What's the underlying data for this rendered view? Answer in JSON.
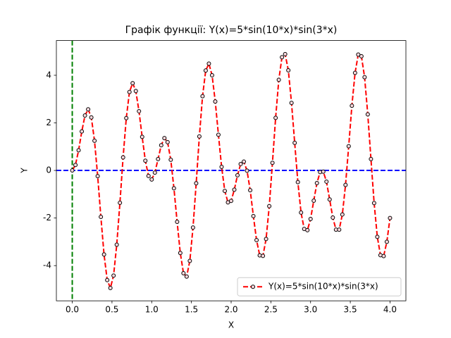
{
  "chart_data": {
    "type": "line",
    "title": "Графік функції: Y(x)=5*sin(10*x)*sin(3*x)",
    "x_label": "X",
    "y_label": "Y",
    "x": [
      0,
      0.04,
      0.08,
      0.12,
      0.16,
      0.2,
      0.24,
      0.28,
      0.32,
      0.36,
      0.4,
      0.44,
      0.48,
      0.52,
      0.56,
      0.6,
      0.64,
      0.68,
      0.72,
      0.76,
      0.8,
      0.84,
      0.88,
      0.92,
      0.96,
      1.0,
      1.04,
      1.08,
      1.12,
      1.16,
      1.2,
      1.24,
      1.28,
      1.32,
      1.36,
      1.4,
      1.44,
      1.48,
      1.52,
      1.56,
      1.6,
      1.64,
      1.68,
      1.72,
      1.76,
      1.8,
      1.84,
      1.88,
      1.92,
      1.96,
      2.0,
      2.04,
      2.08,
      2.12,
      2.16,
      2.2,
      2.24,
      2.28,
      2.32,
      2.36,
      2.4,
      2.44,
      2.48,
      2.52,
      2.56,
      2.6,
      2.64,
      2.68,
      2.72,
      2.76,
      2.8,
      2.84,
      2.88,
      2.92,
      2.96,
      3.0,
      3.04,
      3.08,
      3.12,
      3.16,
      3.2,
      3.24,
      3.28,
      3.32,
      3.36,
      3.4,
      3.44,
      3.48,
      3.52,
      3.56,
      3.6,
      3.64,
      3.68,
      3.72,
      3.76,
      3.8,
      3.84,
      3.88,
      3.92,
      3.96,
      4.0
    ],
    "series": [
      {
        "name": "Y(x)=5*sin(10*x)*sin(3*x)",
        "color": "#ff0000",
        "marker_face": "#fbd9de",
        "marker_edge": "#000000",
        "values": [
          0,
          0.23,
          0.85,
          1.64,
          2.31,
          2.57,
          2.23,
          1.25,
          -0.24,
          -1.95,
          -3.53,
          -4.61,
          -4.94,
          -4.42,
          -3.12,
          -1.36,
          0.55,
          2.2,
          3.3,
          3.67,
          3.34,
          2.49,
          1.41,
          0.41,
          -0.23,
          -0.38,
          -0.09,
          0.48,
          1.06,
          1.36,
          1.19,
          0.45,
          -0.75,
          -2.16,
          -3.47,
          -4.32,
          -4.46,
          -3.8,
          -2.4,
          -0.54,
          1.43,
          3.12,
          4.2,
          4.49,
          4.0,
          2.9,
          1.5,
          0.15,
          -0.86,
          -1.34,
          -1.28,
          -0.81,
          -0.2,
          0.27,
          0.37,
          -0.01,
          -0.83,
          -1.92,
          -2.93,
          -3.57,
          -3.59,
          -2.88,
          -1.5,
          0.32,
          2.21,
          3.81,
          4.76,
          4.89,
          4.21,
          2.84,
          1.16,
          -0.49,
          -1.77,
          -2.46,
          -2.51,
          -2.04,
          -1.27,
          -0.53,
          -0.07,
          -0.05,
          -0.47,
          -1.22,
          -1.98,
          -2.49,
          -2.49,
          -1.85,
          -0.61,
          1.02,
          2.72,
          4.1,
          4.87,
          4.8,
          3.92,
          2.36,
          0.48,
          -1.37,
          -2.79,
          -3.56,
          -3.6,
          -3.0,
          -2.0
        ]
      }
    ],
    "xlim": [
      -0.2,
      4.2
    ],
    "ylim": [
      -5.48,
      5.46
    ],
    "xticks": [
      {
        "value": 0,
        "label": "0.0"
      },
      0.5,
      {
        "value": 1,
        "label": "1.0"
      },
      1.5,
      {
        "value": 2,
        "label": "2.0"
      },
      2.5,
      {
        "value": 3,
        "label": "3.0"
      },
      3.5,
      {
        "value": 4,
        "label": "4.0"
      }
    ],
    "yticks": [
      -4,
      -2,
      0,
      2,
      4
    ],
    "hline": {
      "value": 0,
      "color": "#0000ff"
    },
    "vline": {
      "value": 0,
      "color": "#008000"
    },
    "legend": "lower right"
  }
}
